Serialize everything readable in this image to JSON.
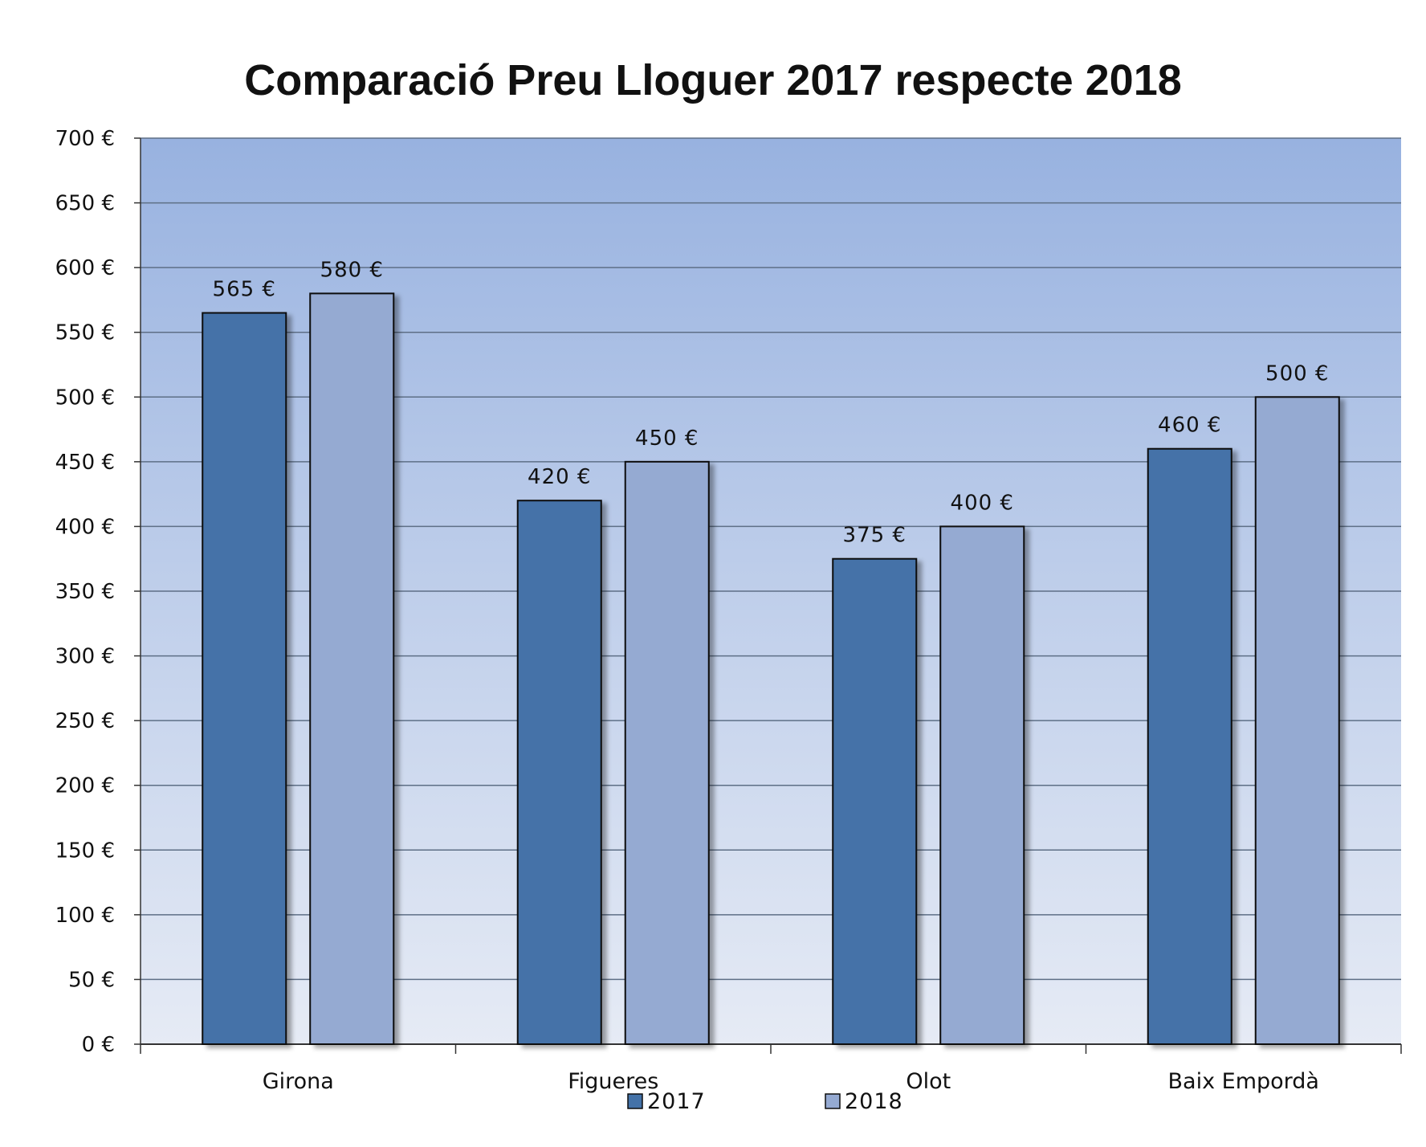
{
  "chart_data": {
    "type": "bar",
    "title": "Comparació Preu Lloguer 2017 respecte 2018",
    "categories": [
      "Girona",
      "Figueres",
      "Olot",
      "Baix Empordà"
    ],
    "series": [
      {
        "name": "2017",
        "values": [
          565,
          420,
          375,
          460
        ],
        "labels": [
          "565 €",
          "420 €",
          "375 €",
          "460 €"
        ],
        "color": "#4472a8"
      },
      {
        "name": "2018",
        "values": [
          580,
          450,
          400,
          500
        ],
        "labels": [
          "580 €",
          "450 €",
          "400 €",
          "500 €"
        ],
        "color": "#95aad2"
      }
    ],
    "ylim": [
      0,
      700
    ],
    "yticks": [
      0,
      50,
      100,
      150,
      200,
      250,
      300,
      350,
      400,
      450,
      500,
      550,
      600,
      650,
      700
    ],
    "ytick_labels": [
      "0 €",
      "50 €",
      "100 €",
      "150 €",
      "200 €",
      "250 €",
      "300 €",
      "350 €",
      "400 €",
      "450 €",
      "500 €",
      "550 €",
      "600 €",
      "650 €",
      "700 €"
    ],
    "xlabel": "",
    "ylabel": "",
    "grid": true,
    "legend_position": "bottom-center",
    "plot_background": {
      "top": "#98b2e0",
      "bottom": "#e6ebf5"
    }
  }
}
